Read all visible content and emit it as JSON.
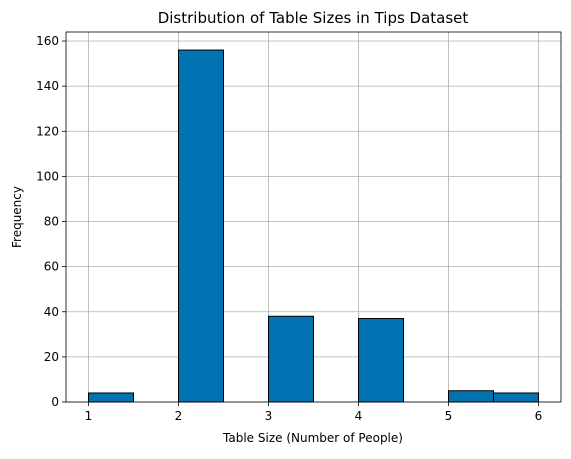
{
  "chart_data": {
    "type": "bar",
    "title": "Distribution of Table Sizes in Tips Dataset",
    "xlabel": "Table Size (Number of People)",
    "ylabel": "Frequency",
    "xlim": [
      0.75,
      6.25
    ],
    "ylim": [
      0,
      164
    ],
    "xticks": [
      1,
      2,
      3,
      4,
      5,
      6
    ],
    "yticks": [
      0,
      20,
      40,
      60,
      80,
      100,
      120,
      140,
      160
    ],
    "grid": true,
    "bar_color": "#0173b2",
    "edge_color": "#000000",
    "bins": [
      {
        "x0": 1.0,
        "x1": 1.5,
        "count": 4
      },
      {
        "x0": 1.5,
        "x1": 2.0,
        "count": 0
      },
      {
        "x0": 2.0,
        "x1": 2.5,
        "count": 156
      },
      {
        "x0": 2.5,
        "x1": 3.0,
        "count": 0
      },
      {
        "x0": 3.0,
        "x1": 3.5,
        "count": 38
      },
      {
        "x0": 3.5,
        "x1": 4.0,
        "count": 0
      },
      {
        "x0": 4.0,
        "x1": 4.5,
        "count": 37
      },
      {
        "x0": 4.5,
        "x1": 5.0,
        "count": 0
      },
      {
        "x0": 5.0,
        "x1": 5.5,
        "count": 5
      },
      {
        "x0": 5.5,
        "x1": 6.0,
        "count": 4
      }
    ]
  }
}
